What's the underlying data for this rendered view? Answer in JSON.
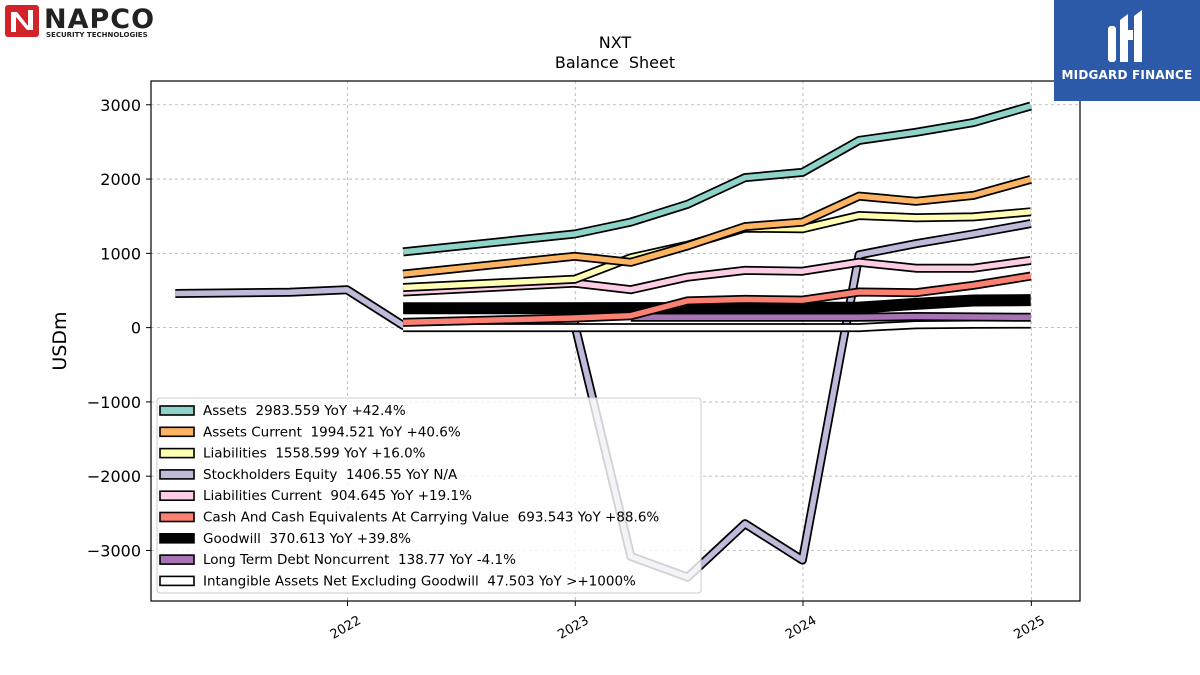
{
  "branding": {
    "company_logo_text": "NAPCO",
    "company_logo_subtext": "SECURITY TECHNOLOGIES",
    "publisher_logo_text": "MIDGARD FINANCE"
  },
  "chart_data": {
    "type": "line",
    "title": "NXT",
    "subtitle": "Balance  Sheet",
    "xlabel": "",
    "ylabel": "USDm",
    "xlim": [
      "2021-02-20",
      "2025-03-20"
    ],
    "ylim": [
      -3680,
      3320
    ],
    "x_ticks": [
      "2022",
      "2023",
      "2024",
      "2025"
    ],
    "y_ticks": [
      3000,
      2000,
      1000,
      0,
      -1000,
      -2000,
      -3000
    ],
    "y_tick_labels": [
      "3000",
      "2000",
      "1000",
      "0",
      "−1000",
      "−2000",
      "−3000"
    ],
    "grid": true,
    "legend_position": "lower-left",
    "series": [
      {
        "name": "Stockholders Equity",
        "legend": "Stockholders Equity  1406.55 YoY N/A",
        "color": "#bebada",
        "points": [
          [
            "2021-03-31",
            460
          ],
          [
            "2021-09-30",
            475
          ],
          [
            "2021-12-31",
            510
          ],
          [
            "2022-03-31",
            30
          ],
          [
            "2022-12-31",
            50
          ],
          [
            "2023-03-31",
            -3080
          ],
          [
            "2023-06-30",
            -3360
          ],
          [
            "2023-09-30",
            -2640
          ],
          [
            "2023-12-31",
            -3130
          ],
          [
            "2024-03-31",
            980
          ],
          [
            "2024-06-30",
            1130
          ],
          [
            "2024-09-30",
            1260
          ],
          [
            "2024-12-31",
            1400
          ]
        ]
      },
      {
        "name": "Intangible Assets Net Excluding Goodwill",
        "legend": "Intangible Assets Net Excluding Goodwill  47.503 YoY >+1000%",
        "color": "#ffffff",
        "points": [
          [
            "2022-03-31",
            0
          ],
          [
            "2022-12-31",
            0
          ],
          [
            "2023-12-31",
            0
          ],
          [
            "2024-03-31",
            0
          ],
          [
            "2024-06-30",
            40
          ],
          [
            "2024-09-30",
            45
          ],
          [
            "2024-12-31",
            47
          ]
        ]
      },
      {
        "name": "Long Term Debt Noncurrent",
        "legend": "Long Term Debt Noncurrent  138.77 YoY -4.1%",
        "color": "#a873b5",
        "points": [
          [
            "2023-03-31",
            140
          ],
          [
            "2023-12-31",
            140
          ],
          [
            "2024-03-31",
            140
          ],
          [
            "2024-06-30",
            150
          ],
          [
            "2024-12-31",
            139
          ]
        ]
      },
      {
        "name": "Goodwill",
        "legend": "Goodwill  370.613 YoY +39.8%",
        "color": "#000000",
        "points": [
          [
            "2022-03-31",
            260
          ],
          [
            "2023-12-31",
            265
          ],
          [
            "2024-03-31",
            270
          ],
          [
            "2024-06-30",
            320
          ],
          [
            "2024-09-30",
            365
          ],
          [
            "2024-12-31",
            371
          ]
        ]
      },
      {
        "name": "Cash And Cash Equivalents At Carrying Value",
        "legend": "Cash And Cash Equivalents At Carrying Value  693.543 YoY +88.6%",
        "color": "#fb8072",
        "points": [
          [
            "2022-03-31",
            70
          ],
          [
            "2022-12-31",
            130
          ],
          [
            "2023-03-31",
            160
          ],
          [
            "2023-06-30",
            360
          ],
          [
            "2023-09-30",
            380
          ],
          [
            "2023-12-31",
            370
          ],
          [
            "2024-03-31",
            480
          ],
          [
            "2024-06-30",
            470
          ],
          [
            "2024-09-30",
            570
          ],
          [
            "2024-12-31",
            694
          ]
        ]
      },
      {
        "name": "Liabilities Current",
        "legend": "Liabilities Current  904.645 YoY +19.1%",
        "color": "#fccde5",
        "points": [
          [
            "2022-03-31",
            480
          ],
          [
            "2022-12-31",
            600
          ],
          [
            "2023-03-31",
            510
          ],
          [
            "2023-06-30",
            680
          ],
          [
            "2023-09-30",
            770
          ],
          [
            "2023-12-31",
            760
          ],
          [
            "2024-03-31",
            880
          ],
          [
            "2024-06-30",
            800
          ],
          [
            "2024-09-30",
            800
          ],
          [
            "2024-12-31",
            905
          ]
        ]
      },
      {
        "name": "Liabilities",
        "legend": "Liabilities  1558.599 YoY +16.0%",
        "color": "#ffffb3",
        "points": [
          [
            "2022-03-31",
            540
          ],
          [
            "2022-12-31",
            650
          ],
          [
            "2023-03-31",
            940
          ],
          [
            "2023-06-30",
            1110
          ],
          [
            "2023-09-30",
            1340
          ],
          [
            "2023-12-31",
            1330
          ],
          [
            "2024-03-31",
            1510
          ],
          [
            "2024-06-30",
            1480
          ],
          [
            "2024-09-30",
            1490
          ],
          [
            "2024-12-31",
            1559
          ]
        ]
      },
      {
        "name": "Assets Current",
        "legend": "Assets Current  1994.521 YoY +40.6%",
        "color": "#fdb462",
        "points": [
          [
            "2022-03-31",
            720
          ],
          [
            "2022-12-31",
            960
          ],
          [
            "2023-03-31",
            880
          ],
          [
            "2023-06-30",
            1100
          ],
          [
            "2023-09-30",
            1360
          ],
          [
            "2023-12-31",
            1420
          ],
          [
            "2024-03-31",
            1770
          ],
          [
            "2024-06-30",
            1700
          ],
          [
            "2024-09-30",
            1780
          ],
          [
            "2024-12-31",
            1995
          ]
        ]
      },
      {
        "name": "Assets",
        "legend": "Assets  2983.559 YoY +42.4%",
        "color": "#8dd3c7",
        "points": [
          [
            "2022-03-31",
            1020
          ],
          [
            "2022-12-31",
            1260
          ],
          [
            "2023-03-31",
            1420
          ],
          [
            "2023-06-30",
            1660
          ],
          [
            "2023-09-30",
            2020
          ],
          [
            "2023-12-31",
            2090
          ],
          [
            "2024-03-31",
            2520
          ],
          [
            "2024-06-30",
            2630
          ],
          [
            "2024-09-30",
            2760
          ],
          [
            "2024-12-31",
            2984
          ]
        ]
      }
    ],
    "legend_order": [
      "Assets",
      "Assets Current",
      "Liabilities",
      "Stockholders Equity",
      "Liabilities Current",
      "Cash And Cash Equivalents At Carrying Value",
      "Goodwill",
      "Long Term Debt Noncurrent",
      "Intangible Assets Net Excluding Goodwill"
    ]
  }
}
